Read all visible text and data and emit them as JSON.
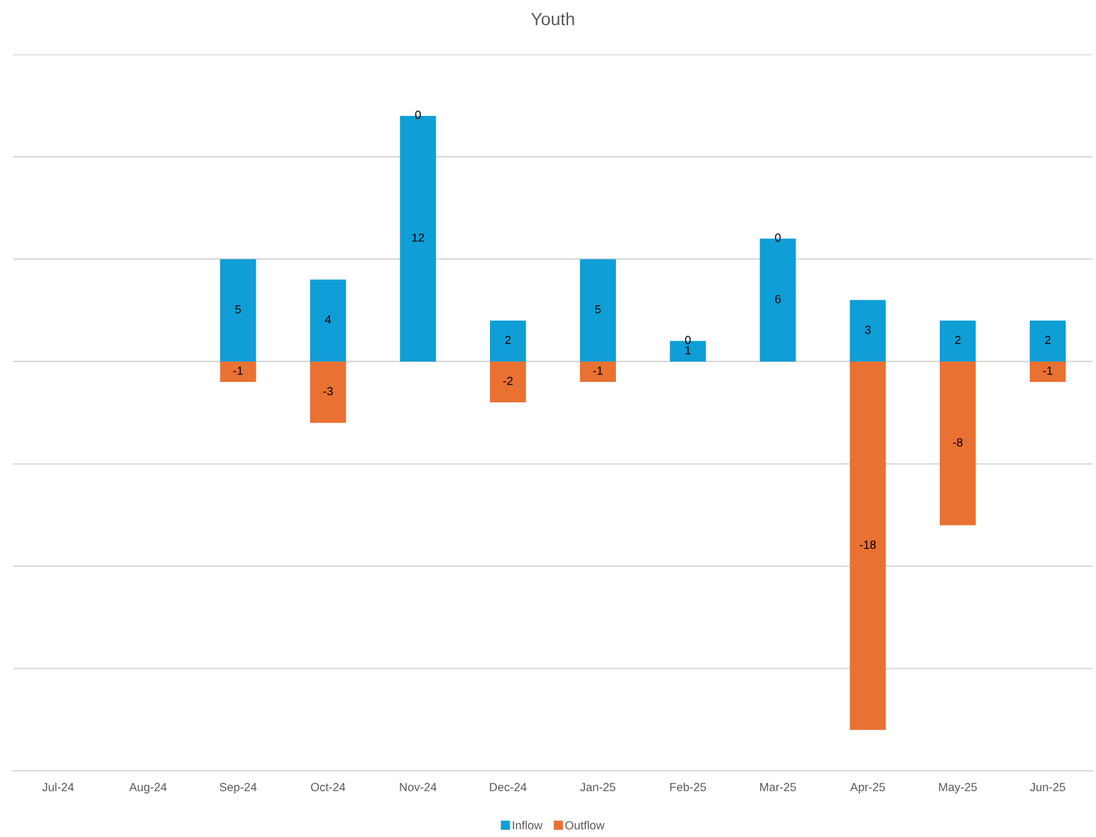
{
  "chart_data": {
    "type": "bar",
    "title": "Youth",
    "stacked": true,
    "data_labels": true,
    "grid": "y",
    "legend": "bottom",
    "tick_labels": "x",
    "categories": [
      "Jul-24",
      "Aug-24",
      "Sep-24",
      "Oct-24",
      "Nov-24",
      "Dec-24",
      "Jan-25",
      "Feb-25",
      "Mar-25",
      "Apr-25",
      "May-25",
      "Jun-25"
    ],
    "ylim": [
      -20,
      15
    ],
    "yticks": [
      {
        "value": -20,
        "label": null
      },
      {
        "value": -15,
        "label": null
      },
      {
        "value": -10,
        "label": null
      },
      {
        "value": -5,
        "label": null
      },
      {
        "value": 0,
        "label": null
      },
      {
        "value": 5,
        "label": null
      },
      {
        "value": 10,
        "label": null
      },
      {
        "value": 15,
        "label": null
      }
    ],
    "series": [
      {
        "name": "Inflow",
        "color": "#0f9ed5",
        "values": [
          null,
          null,
          5,
          4,
          12,
          2,
          5,
          1,
          6,
          3,
          2,
          2
        ]
      },
      {
        "name": "Outflow",
        "color": "#e97132",
        "values": [
          null,
          null,
          -1,
          -3,
          0,
          -2,
          -1,
          0,
          0,
          -18,
          -8,
          -1
        ]
      }
    ]
  }
}
